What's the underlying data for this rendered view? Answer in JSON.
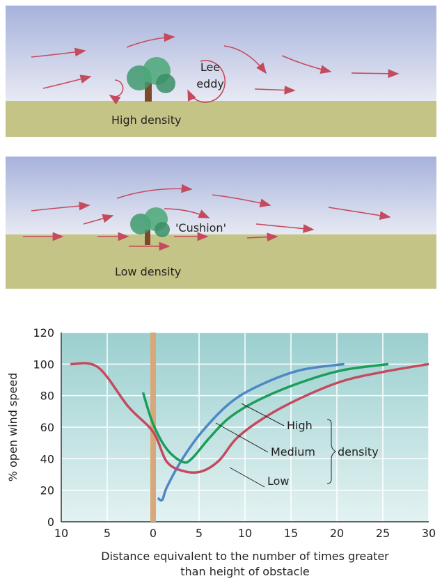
{
  "diagrams": {
    "high": {
      "eddy_label": [
        "Lee",
        "eddy"
      ],
      "caption": "High density"
    },
    "low": {
      "cushion_label": "'Cushion'",
      "caption": "Low density"
    }
  },
  "chart_data": {
    "type": "line",
    "y_label": "% open wind speed",
    "x_label": [
      "Distance equivalent to the number of times greater",
      "than height of obstacle"
    ],
    "annotation": "density",
    "xlim": [
      -10,
      30
    ],
    "ylim": [
      0,
      120
    ],
    "xticks": [
      {
        "value": -10,
        "label": "10"
      },
      {
        "value": -5,
        "label": "5"
      },
      0,
      5,
      10,
      15,
      20,
      25,
      30
    ],
    "yticks": [
      0,
      20,
      40,
      60,
      80,
      100,
      120
    ],
    "grid": true,
    "series": [
      {
        "name": "High",
        "color": "#4f86c6",
        "x": [
          0.5,
          1,
          1.5,
          3.2,
          5.3,
          8.3,
          11.4,
          15.9,
          20.8
        ],
        "values": [
          15,
          14,
          22,
          40,
          57,
          75,
          86,
          96,
          100
        ]
      },
      {
        "name": "Medium",
        "color": "#1a9e5a",
        "x": [
          -1.1,
          0,
          1.5,
          3.2,
          4.2,
          6.1,
          8.3,
          11.4,
          15.9,
          20.5,
          25.6
        ],
        "values": [
          82,
          62,
          46,
          38,
          40,
          53,
          66,
          77,
          88,
          96,
          100
        ]
      },
      {
        "name": "Low",
        "color": "#c44a5e",
        "x": [
          -9,
          -6,
          -2.7,
          0,
          1.5,
          3.4,
          5.3,
          7.2,
          9.1,
          12.1,
          15.9,
          20.5,
          25,
          30
        ],
        "values": [
          100,
          98,
          73,
          57,
          38,
          32,
          32,
          39,
          53,
          66,
          78,
          89,
          95,
          100
        ]
      }
    ]
  }
}
